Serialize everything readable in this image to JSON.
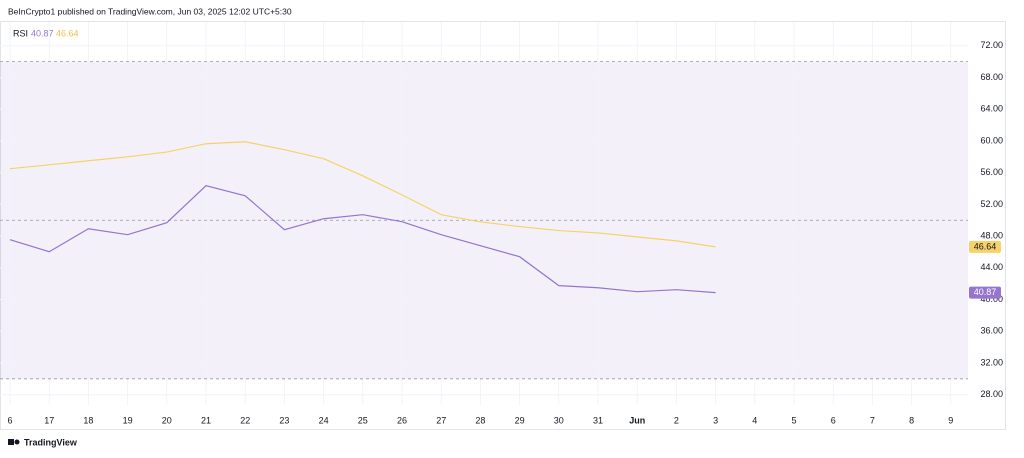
{
  "header": {
    "text": "BeInCrypto1 published on TradingView.com, Jun 03, 2025 12:02 UTC+5:30"
  },
  "footer": {
    "brand": "TradingView"
  },
  "chart_data": {
    "type": "line",
    "indicator": "RSI",
    "categories": [
      "6",
      "17",
      "18",
      "19",
      "20",
      "21",
      "22",
      "23",
      "24",
      "25",
      "26",
      "27",
      "28",
      "29",
      "30",
      "31",
      "Jun",
      "2",
      "3",
      "4",
      "5",
      "6",
      "7",
      "8",
      "9"
    ],
    "series": [
      {
        "color": "#9575cd",
        "values": [
          47.55,
          46.03,
          48.93,
          48.18,
          49.69,
          54.36,
          53.09,
          48.81,
          50.19,
          50.7,
          49.82,
          48.18,
          46.79,
          45.4,
          41.75,
          41.49,
          40.99,
          41.24,
          40.87,
          null,
          null,
          null,
          null,
          null,
          null
        ]
      },
      {
        "color": "#f7d26a",
        "values": [
          56.5,
          56.99,
          57.5,
          58.0,
          58.6,
          59.65,
          59.9,
          58.9,
          57.76,
          55.6,
          53.2,
          50.7,
          49.8,
          49.2,
          48.7,
          48.4,
          47.9,
          47.4,
          46.64,
          null,
          null,
          null,
          null,
          null,
          null
        ]
      }
    ],
    "bands": [
      70,
      50,
      30
    ],
    "band_color": "#7e57c2",
    "ylim": [
      26.7,
      75
    ],
    "yticks": [
      {
        "value": 28,
        "label": "28.00"
      },
      {
        "value": 32,
        "label": "32.00"
      },
      {
        "value": 36,
        "label": "36.00"
      },
      {
        "value": 40,
        "label": "40.00"
      },
      {
        "value": 44,
        "label": "44.00"
      },
      {
        "value": 48,
        "label": "48.00"
      },
      {
        "value": 52,
        "label": "52.00"
      },
      {
        "value": 56,
        "label": "56.00"
      },
      {
        "value": 60,
        "label": "60.00"
      },
      {
        "value": 64,
        "label": "64.00"
      },
      {
        "value": 68,
        "label": "68.00"
      },
      {
        "value": 72,
        "label": "72.00"
      }
    ],
    "grid": true
  }
}
